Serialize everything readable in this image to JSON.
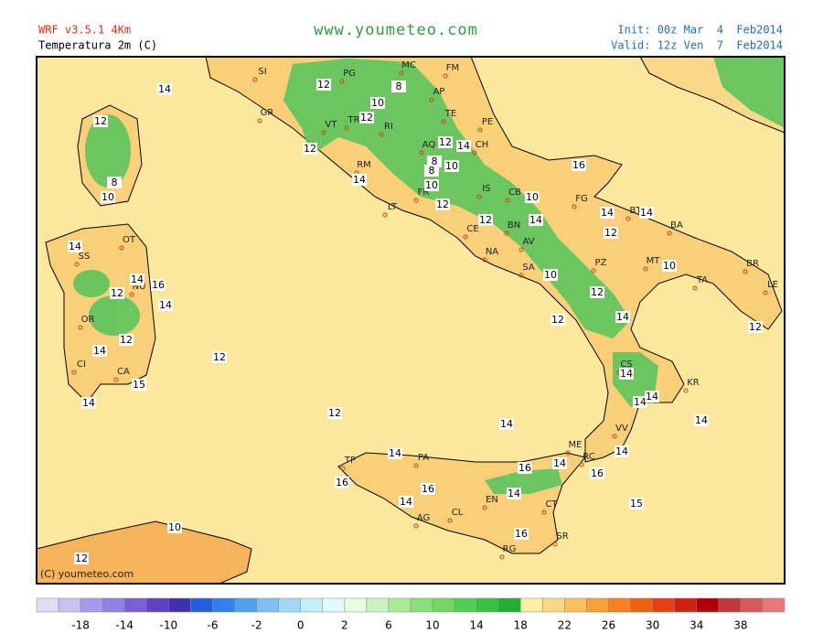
{
  "header": {
    "model": "WRF v3.5.1 4Km",
    "variable": "Temperatura 2m (C)",
    "site": "www.youmeteo.com",
    "init": "Init: 00z Mar  4  Feb2014",
    "valid": "Valid: 12z Ven  7  Feb2014"
  },
  "map": {
    "credit": "(C) youmeteo.com",
    "cities": [
      "SI",
      "PG",
      "MC",
      "FM",
      "AP",
      "GR",
      "VT",
      "TR",
      "RI",
      "TE",
      "PE",
      "AQ",
      "CH",
      "RM",
      "FR",
      "IS",
      "CB",
      "FG",
      "BT",
      "BA",
      "LT",
      "CE",
      "BN",
      "AV",
      "NA",
      "SA",
      "PZ",
      "MT",
      "TA",
      "BR",
      "LE",
      "CS",
      "KR",
      "VV",
      "RC",
      "ME",
      "TP",
      "PA",
      "EN",
      "CT",
      "AG",
      "CL",
      "SR",
      "RG",
      "OT",
      "SS",
      "NU",
      "OR",
      "CA",
      "CI"
    ],
    "values": [
      14,
      12,
      8,
      10,
      14,
      14,
      16,
      12,
      14,
      12,
      14,
      15,
      14,
      12,
      10,
      8,
      12,
      12,
      14,
      12,
      14,
      8,
      10,
      8,
      10,
      12,
      12,
      10,
      14,
      16,
      14,
      14,
      12,
      10,
      10,
      12,
      12,
      14,
      12,
      14,
      14,
      14,
      14,
      12,
      12,
      14,
      14,
      14,
      16,
      16,
      14,
      14,
      16,
      14,
      16,
      16,
      15,
      10,
      12
    ]
  },
  "colorbar": {
    "ticks": [
      -18,
      -14,
      -10,
      -6,
      -2,
      0,
      2,
      6,
      10,
      14,
      18,
      22,
      26,
      30,
      34,
      38
    ]
  }
}
